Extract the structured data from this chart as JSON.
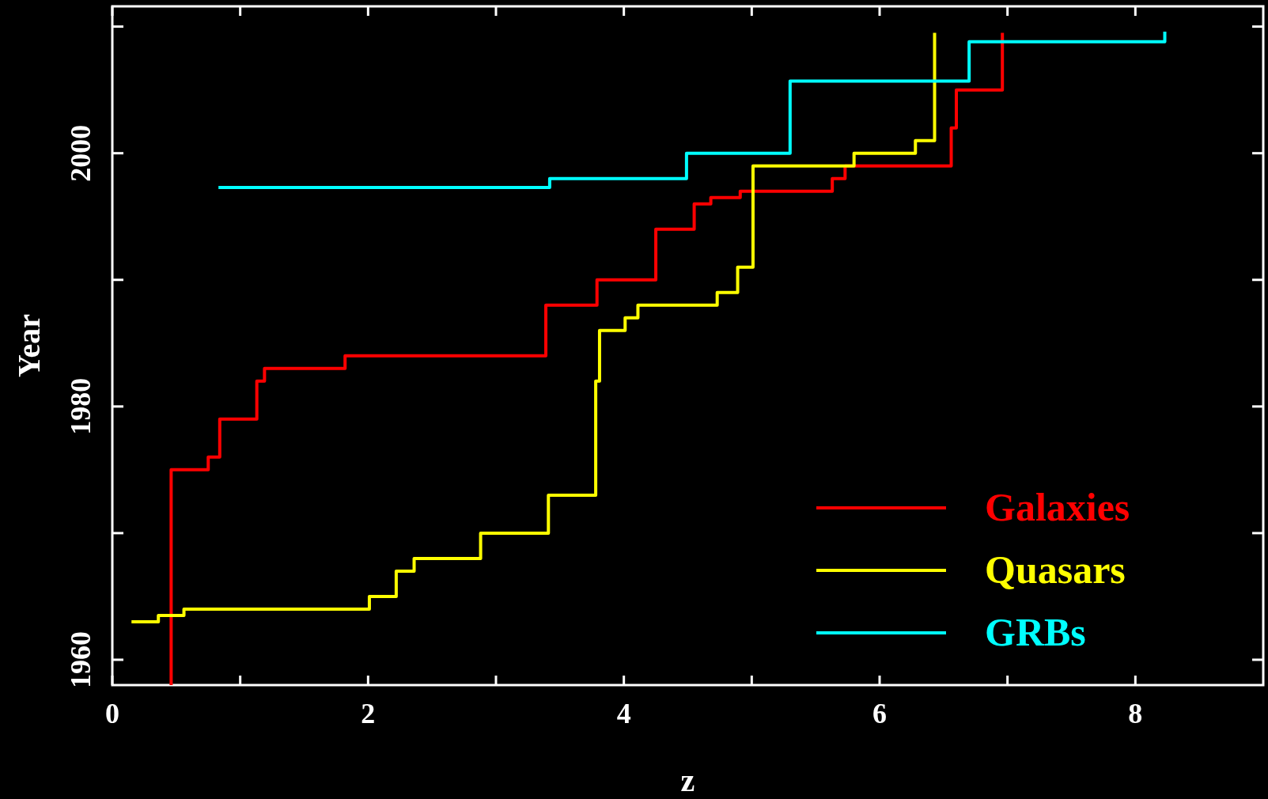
{
  "chart_data": {
    "type": "step",
    "xlabel": "z",
    "ylabel": "Year",
    "xlim": [
      0,
      9
    ],
    "ylim": [
      1958,
      2011.6
    ],
    "xticks": [
      0,
      {
        "value": 1,
        "label": null
      },
      2,
      {
        "value": 3,
        "label": null
      },
      4,
      {
        "value": 5,
        "label": null
      },
      6,
      {
        "value": 7,
        "label": null
      },
      8
    ],
    "yticks": [
      1960,
      {
        "value": 1970,
        "label": null
      },
      1980,
      {
        "value": 1990,
        "label": null
      },
      2000,
      {
        "value": 2010,
        "label": null
      }
    ],
    "grid": false,
    "legend": "bottom right",
    "line_style": "solid",
    "marker": "none",
    "series": [
      {
        "name": "Galaxies",
        "color": "#ff0000",
        "x": [
          0.46,
          0.46,
          0.75,
          0.84,
          1.13,
          1.19,
          1.82,
          3.39,
          3.79,
          4.25,
          4.55,
          4.68,
          4.91,
          5.63,
          5.73,
          6.56,
          6.6,
          6.96
        ],
        "values": [
          1958,
          1975,
          1976,
          1979,
          1982,
          1983,
          1984,
          1988,
          1990,
          1994,
          1996,
          1996.5,
          1997,
          1998,
          1999,
          2002,
          2005,
          2009.5
        ]
      },
      {
        "name": "Quasars",
        "color": "#ffff00",
        "x": [
          0.15,
          0.36,
          0.56,
          2.01,
          2.22,
          2.36,
          2.88,
          3.41,
          3.78,
          3.81,
          4.01,
          4.11,
          4.73,
          4.89,
          5.01,
          5.8,
          6.28,
          6.43
        ],
        "values": [
          1963,
          1963.5,
          1964,
          1965,
          1967,
          1968,
          1970,
          1973,
          1982,
          1986,
          1987,
          1988,
          1989,
          1991,
          1999,
          2000,
          2001,
          2009.5
        ]
      },
      {
        "name": "GRBs",
        "color": "#00ffff",
        "x": [
          0.83,
          3.42,
          4.49,
          5.3,
          6.7,
          8.23
        ],
        "values": [
          1997.3,
          1998,
          2000,
          2005.7,
          2008.8,
          2009.6
        ]
      }
    ]
  }
}
